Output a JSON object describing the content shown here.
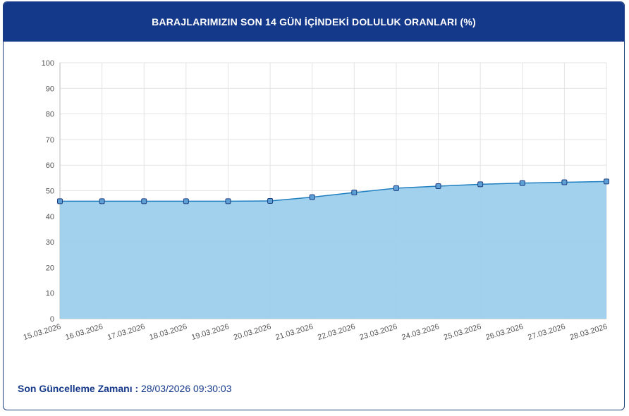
{
  "header": {
    "title": "BARAJLARIMIZIN SON 14 GÜN İÇİNDEKİ DOLULUK ORANLARI (%)"
  },
  "footer": {
    "label": "Son Güncelleme Zamanı :",
    "value": " 28/03/2026 09:30:03"
  },
  "colors": {
    "header_bg": "#15398a",
    "line": "#1f7fc0",
    "fill": "#9ccfeb",
    "marker_fill": "#5ea0d6",
    "marker_stroke": "#1d3f80",
    "grid": "#e3e3e3"
  },
  "chart_data": {
    "type": "area",
    "x": [
      "15.03.2026",
      "16.03.2026",
      "17.03.2026",
      "18.03.2026",
      "19.03.2026",
      "20.03.2026",
      "21.03.2026",
      "22.03.2026",
      "23.03.2026",
      "24.03.2026",
      "25.03.2026",
      "26.03.2026",
      "27.03.2026",
      "28.03.2026"
    ],
    "series": [
      {
        "values": [
          45.9,
          45.9,
          45.9,
          45.9,
          45.9,
          46.0,
          47.5,
          49.3,
          51.0,
          51.8,
          52.5,
          53.0,
          53.3,
          53.6
        ]
      }
    ],
    "ylim": [
      0,
      100
    ],
    "yticks": [
      0,
      10,
      20,
      30,
      40,
      50,
      60,
      70,
      80,
      90,
      100
    ],
    "grid": true,
    "title": "BARAJLARIMIZIN SON 14 GÜN İÇİNDEKİ DOLULUK ORANLARI (%)",
    "xlabel": "",
    "ylabel": ""
  }
}
